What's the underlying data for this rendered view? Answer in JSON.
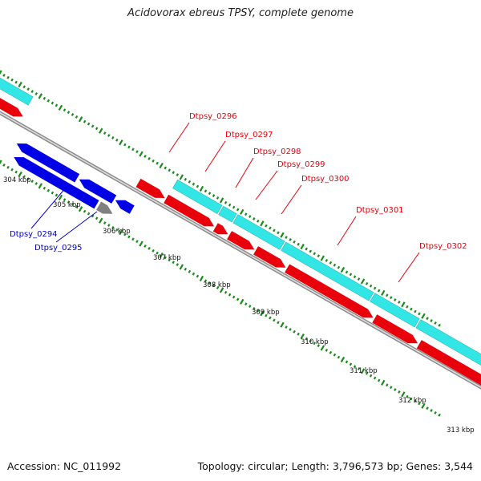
{
  "title": "Acidovorax ebreus TPSY, complete genome",
  "footer": {
    "accession_text": "Accession: NC_011992",
    "summary_text": "Topology: circular; Length: 3,796,573 bp; Genes: 3,544"
  },
  "colors": {
    "forward_gene": "#e8000b",
    "reverse_gene": "#0000e6",
    "cds_track": "#33e6e6",
    "pseudo_gene": "#808080",
    "backbone": "#9a9a9a",
    "ticks": "#1a8a1a",
    "label_forward": "#e8000b",
    "label_reverse": "#0000cc"
  },
  "kbp_labels": [
    "304 kbp",
    "305 kbp",
    "306 kbp",
    "307 kbp",
    "308 kbp",
    "309 kbp",
    "310 kbp",
    "311 kbp",
    "312 kbp",
    "313 kbp"
  ],
  "gene_labels": [
    {
      "text": "Dtpsy_0294",
      "strand": "reverse"
    },
    {
      "text": "Dtpsy_0295",
      "strand": "reverse"
    },
    {
      "text": "Dtpsy_0296",
      "strand": "forward"
    },
    {
      "text": "Dtpsy_0297",
      "strand": "forward"
    },
    {
      "text": "Dtpsy_0298",
      "strand": "forward"
    },
    {
      "text": "Dtpsy_0299",
      "strand": "forward"
    },
    {
      "text": "Dtpsy_0300",
      "strand": "forward"
    },
    {
      "text": "Dtpsy_0301",
      "strand": "forward"
    },
    {
      "text": "Dtpsy_0302",
      "strand": "forward"
    }
  ]
}
